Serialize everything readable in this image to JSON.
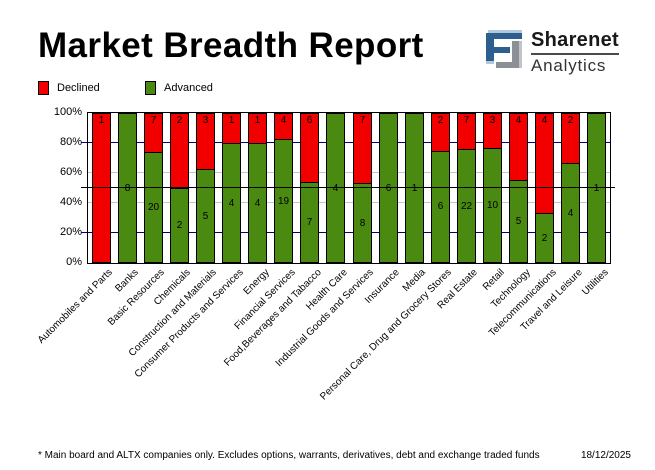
{
  "header": {
    "title": "Market Breadth Report",
    "logo": {
      "name": "Sharenet",
      "sub": "Analytics"
    }
  },
  "legend": {
    "items": [
      {
        "label": "Declined",
        "color": "#f20000"
      },
      {
        "label": "Advanced",
        "color": "#4a8a10"
      }
    ]
  },
  "footer": {
    "note": "* Main board and ALTX companies only. Excludes options, warrants, derivatives, debt and exchange traded funds",
    "date": "18/12/2025"
  },
  "chart_data": {
    "type": "bar",
    "variant": "100pct-stacked-column",
    "title": "Market Breadth Report",
    "categories": [
      "Automobiles and Parts",
      "Banks",
      "Basic Resources",
      "Chemicals",
      "Construction and Materials",
      "Consumer Products and Services",
      "Energy",
      "Financial Services",
      "Food,Beverages and Tabacco",
      "Health Care",
      "Industrial Goods and Services",
      "Insurance",
      "Media",
      "Personal Care, Drug and Grocery Stores",
      "Real Estate",
      "Retail",
      "Technology",
      "Telecommunications",
      "Travel and Leisure",
      "Utilities"
    ],
    "series": [
      {
        "name": "Declined",
        "color": "#f20000",
        "values": [
          1,
          0,
          7,
          2,
          3,
          1,
          1,
          4,
          6,
          0,
          7,
          0,
          0,
          2,
          7,
          3,
          4,
          4,
          2,
          0
        ]
      },
      {
        "name": "Advanced",
        "color": "#4a8a10",
        "values": [
          0,
          8,
          20,
          2,
          5,
          4,
          4,
          19,
          7,
          4,
          8,
          6,
          1,
          6,
          22,
          10,
          5,
          2,
          4,
          1
        ]
      }
    ],
    "bar_labels": "counts shown inside segments",
    "y_axis": {
      "ticks": [
        "100%",
        "80%",
        "60%",
        "40%",
        "20%",
        "0%"
      ],
      "lim": [
        0,
        100
      ],
      "unit": "percent of total"
    },
    "gridlines": [
      {
        "pct": 80,
        "color": "#000080"
      },
      {
        "pct": 60,
        "color": "#c6c6c6"
      },
      {
        "pct": 40,
        "color": "#c6c6c6"
      },
      {
        "pct": 20,
        "color": "#000080"
      }
    ],
    "reference_line": {
      "pct": 50,
      "color": "#000000"
    },
    "legend_position": "top-left",
    "x_label_rotation_deg": 45
  }
}
